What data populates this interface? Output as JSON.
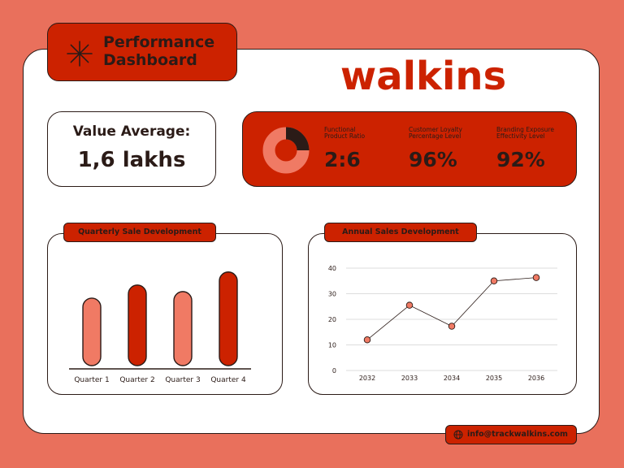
{
  "header": {
    "title_line1": "Performance",
    "title_line2": "Dashboard",
    "title_icon": "asterisk-icon",
    "brand": "walkins"
  },
  "value_card": {
    "label": "Value Average:",
    "value": "1,6 lakhs"
  },
  "kpis": [
    {
      "label_line1": "Functional",
      "label_line2": "Product Ratio",
      "value": "2:6"
    },
    {
      "label_line1": "Customer Loyalty",
      "label_line2": "Percentage Level",
      "value": "96%"
    },
    {
      "label_line1": "Branding Exposure",
      "label_line2": "Effectivity Level",
      "value": "92%"
    }
  ],
  "donut": {
    "fraction": 0.25,
    "colors": {
      "main": "#f07a64",
      "accent": "#2b1b17"
    }
  },
  "footer": {
    "email": "info@trackwalkins.com",
    "icon": "globe-icon"
  },
  "colors": {
    "background": "#e9705c",
    "red": "#cc2200",
    "salmon": "#f07a64",
    "dark": "#2b1b17"
  },
  "chart_data": [
    {
      "type": "bar",
      "title": "Quarterly Sale Development",
      "categories": [
        "Quarter 1",
        "Quarter 2",
        "Quarter 3",
        "Quarter 4"
      ],
      "values": [
        62,
        74,
        68,
        86
      ],
      "ylim": [
        0,
        100
      ],
      "grid": false,
      "colors": [
        "#f07a64",
        "#cc2200",
        "#f07a64",
        "#cc2200"
      ]
    },
    {
      "type": "line",
      "title": "Annual Sales Development",
      "x": [
        "2032",
        "2033",
        "2034",
        "2035",
        "2036"
      ],
      "series": [
        {
          "values": [
            12,
            25.5,
            17.3,
            35,
            36.3
          ]
        }
      ],
      "ylim": [
        0,
        40
      ],
      "yticks": [
        "0",
        "10",
        "20",
        "30",
        "40"
      ],
      "grid": true
    }
  ]
}
